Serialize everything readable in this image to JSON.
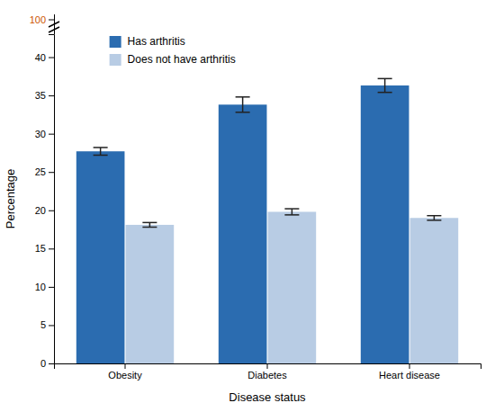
{
  "chart_data": {
    "type": "bar",
    "categories": [
      "Obesity",
      "Diabetes",
      "Heart disease"
    ],
    "series": [
      {
        "name": "Has arthritis",
        "color": "#2B6CB0",
        "values": [
          27.7,
          33.8,
          36.3
        ],
        "errors": [
          0.5,
          1.0,
          0.9
        ]
      },
      {
        "name": "Does not have arthritis",
        "color": "#B8CCE4",
        "values": [
          18.1,
          19.8,
          19.0
        ],
        "errors": [
          0.3,
          0.4,
          0.3
        ]
      }
    ],
    "xlabel": "Disease status",
    "ylabel": "Percentage",
    "ylim": [
      0,
      43
    ],
    "yticks": [
      0,
      5,
      10,
      15,
      20,
      25,
      30,
      35,
      40
    ],
    "legend": "upper left",
    "annotations": [
      {
        "text": "100",
        "color": "#CC5500"
      }
    ]
  }
}
